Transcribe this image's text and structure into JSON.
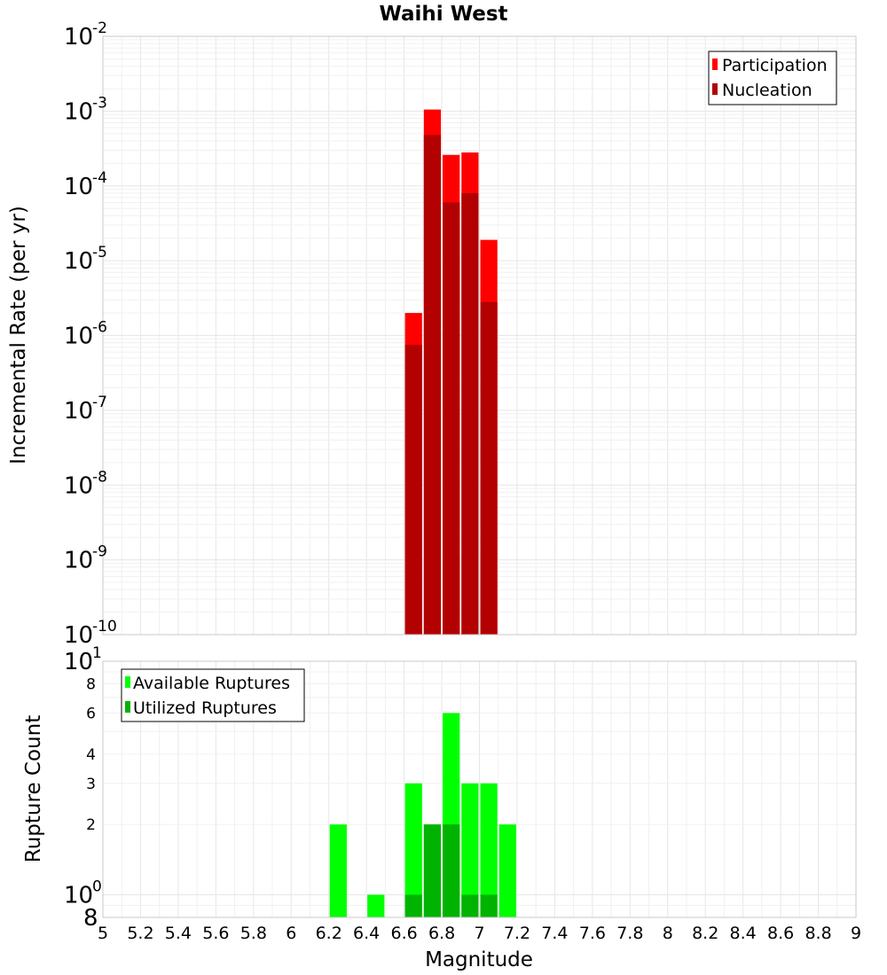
{
  "title": "Waihi West",
  "chart_data": [
    {
      "type": "bar",
      "name": "rate-panel",
      "ylabel": "Incremental Rate (per yr)",
      "yscale": "log",
      "ylim": [
        1e-10,
        0.01
      ],
      "y_ticks": [
        "10^-10",
        "10^-9",
        "10^-8",
        "10^-7",
        "10^-6",
        "10^-5",
        "10^-4",
        "10^-3",
        "10^-2"
      ],
      "xlim": [
        5,
        9
      ],
      "bar_width": 0.1,
      "grid": true,
      "legend_placement": "top-right",
      "series": [
        {
          "name": "Participation",
          "color": "#ff0000",
          "x": [
            6.65,
            6.75,
            6.85,
            6.95,
            7.05
          ],
          "values": [
            2e-06,
            0.00105,
            0.00026,
            0.00028,
            1.9e-05
          ]
        },
        {
          "name": "Nucleation",
          "color": "#b30000",
          "x": [
            6.65,
            6.75,
            6.85,
            6.95,
            7.05
          ],
          "values": [
            7.5e-07,
            0.00048,
            6e-05,
            8e-05,
            2.8e-06
          ]
        }
      ]
    },
    {
      "type": "bar",
      "name": "count-panel",
      "ylabel": "Rupture Count",
      "xlabel": "Magnitude",
      "yscale": "log",
      "ylim": [
        0.8,
        10
      ],
      "y_ticks_major": [
        "8",
        "10^0",
        "10^1"
      ],
      "y_ticks_minor": [
        "2",
        "3",
        "4",
        "6",
        "8"
      ],
      "xlim": [
        5,
        9
      ],
      "x_ticks": [
        "5",
        "5.2",
        "5.4",
        "5.6",
        "5.8",
        "6",
        "6.2",
        "6.4",
        "6.6",
        "6.8",
        "7",
        "7.2",
        "7.4",
        "7.6",
        "7.8",
        "8",
        "8.2",
        "8.4",
        "8.6",
        "8.8",
        "9"
      ],
      "bar_width": 0.1,
      "grid": true,
      "legend_placement": "top-left",
      "series": [
        {
          "name": "Available Ruptures",
          "color": "#00ff00",
          "x": [
            6.25,
            6.45,
            6.65,
            6.75,
            6.85,
            6.95,
            7.05,
            7.15
          ],
          "values": [
            2,
            1,
            3,
            2,
            6,
            3,
            3,
            2
          ]
        },
        {
          "name": "Utilized Ruptures",
          "color": "#00b300",
          "x": [
            6.65,
            6.75,
            6.85,
            6.95,
            7.05
          ],
          "values": [
            1,
            2,
            2,
            1,
            1
          ]
        }
      ]
    }
  ]
}
